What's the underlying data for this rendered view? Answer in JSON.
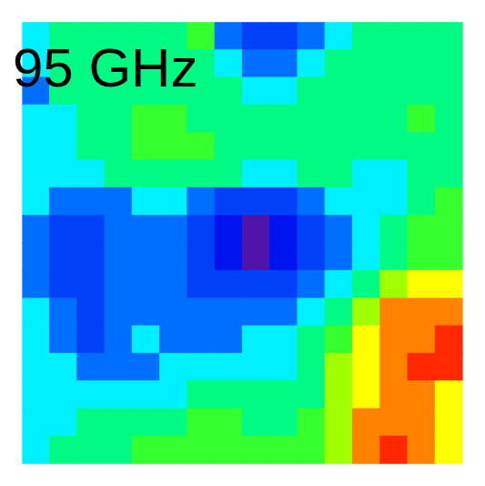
{
  "chart_data": {
    "type": "heatmap",
    "title": "95 GHz",
    "tick_labels": false,
    "zlim": [
      0,
      10
    ],
    "cells": [
      [
        4,
        5,
        5,
        5,
        5,
        5,
        6,
        3,
        2,
        2,
        3,
        4,
        5,
        5,
        5,
        5
      ],
      [
        4,
        5,
        5,
        5,
        5,
        5,
        5,
        4,
        3,
        3,
        4,
        5,
        5,
        5,
        5,
        5
      ],
      [
        3,
        5,
        5,
        5,
        5,
        5,
        5,
        5,
        4,
        4,
        5,
        5,
        5,
        5,
        5,
        5
      ],
      [
        4,
        4,
        5,
        5,
        6,
        6,
        5,
        5,
        5,
        5,
        5,
        5,
        5,
        5,
        6,
        5
      ],
      [
        4,
        4,
        5,
        5,
        6,
        6,
        6,
        5,
        5,
        5,
        5,
        5,
        5,
        5,
        5,
        5
      ],
      [
        4,
        4,
        4,
        5,
        5,
        5,
        5,
        5,
        4,
        4,
        5,
        5,
        4,
        4,
        5,
        5
      ],
      [
        4,
        3,
        3,
        3,
        4,
        4,
        3,
        2,
        2,
        2,
        3,
        4,
        4,
        4,
        5,
        6
      ],
      [
        3,
        2,
        2,
        3,
        3,
        3,
        2,
        1,
        0,
        1,
        2,
        3,
        4,
        5,
        6,
        6
      ],
      [
        3,
        2,
        2,
        3,
        3,
        3,
        2,
        1,
        0,
        1,
        2,
        3,
        4,
        5,
        6,
        6
      ],
      [
        3,
        2,
        2,
        3,
        3,
        3,
        2,
        2,
        2,
        2,
        3,
        4,
        5,
        7,
        8,
        8
      ],
      [
        4,
        3,
        2,
        3,
        3,
        3,
        3,
        3,
        3,
        3,
        4,
        5,
        7,
        9,
        9,
        9
      ],
      [
        4,
        3,
        2,
        3,
        4,
        3,
        3,
        3,
        4,
        4,
        5,
        6,
        8,
        9,
        9,
        10
      ],
      [
        4,
        4,
        3,
        3,
        3,
        4,
        4,
        4,
        4,
        4,
        5,
        7,
        8,
        9,
        10,
        10
      ],
      [
        4,
        4,
        4,
        4,
        4,
        4,
        5,
        5,
        5,
        5,
        5,
        7,
        8,
        9,
        9,
        8
      ],
      [
        4,
        4,
        5,
        5,
        5,
        5,
        6,
        6,
        5,
        5,
        6,
        7,
        9,
        9,
        9,
        8
      ],
      [
        4,
        5,
        5,
        5,
        6,
        6,
        6,
        6,
        6,
        6,
        6,
        7,
        9,
        10,
        9,
        8
      ]
    ]
  }
}
